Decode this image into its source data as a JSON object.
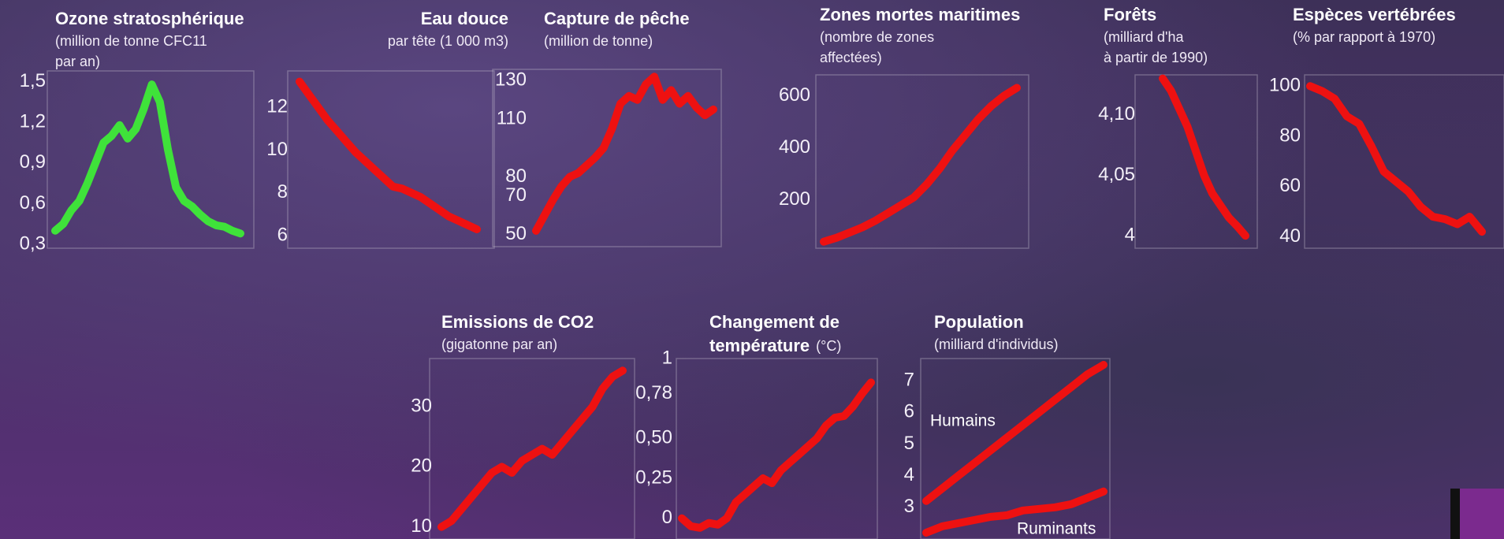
{
  "chart_data": [
    {
      "type": "line",
      "title": "Ozone stratosphérique",
      "subtitle": [
        "(million de tonne CFC11",
        "par an)"
      ],
      "ylim": [
        0.3,
        1.58
      ],
      "yticks": [
        {
          "value": 0.3,
          "label": "0,3"
        },
        {
          "value": 0.6,
          "label": "0,6"
        },
        {
          "value": 0.9,
          "label": "0,9"
        },
        {
          "value": 1.2,
          "label": "1,2"
        },
        {
          "value": 1.5,
          "label": "1,5"
        }
      ],
      "series": [
        {
          "color": "#3fe23a",
          "values": [
            0.4,
            0.45,
            0.55,
            0.62,
            0.75,
            0.9,
            1.05,
            1.1,
            1.18,
            1.08,
            1.15,
            1.3,
            1.48,
            1.35,
            1.0,
            0.72,
            0.62,
            0.58,
            0.52,
            0.47,
            0.44,
            0.43,
            0.4,
            0.38
          ]
        }
      ]
    },
    {
      "type": "line",
      "title": "Eau douce",
      "subtitle": [
        "par tête (1 000 m3)"
      ],
      "ylim": [
        5.6,
        13.7
      ],
      "yticks": [
        6,
        8,
        10,
        12
      ],
      "series": [
        {
          "color": "#ee1111",
          "values": [
            13.2,
            12.6,
            12.0,
            11.4,
            10.9,
            10.4,
            9.9,
            9.5,
            9.1,
            8.7,
            8.3,
            8.2,
            8.0,
            7.8,
            7.5,
            7.2,
            6.9,
            6.7,
            6.5,
            6.3
          ]
        }
      ]
    },
    {
      "type": "line",
      "title": "Capture de pêche",
      "subtitle": [
        "(million de tonne)"
      ],
      "ylim": [
        45,
        135
      ],
      "yticks": [
        50,
        70,
        80,
        110,
        130
      ],
      "series": [
        {
          "color": "#ee1111",
          "values": [
            52,
            60,
            68,
            75,
            80,
            82,
            86,
            90,
            95,
            105,
            118,
            122,
            120,
            128,
            132,
            120,
            125,
            118,
            122,
            116,
            112,
            115
          ]
        }
      ]
    },
    {
      "type": "line",
      "title": "Zones mortes maritimes",
      "subtitle": [
        "(nombre de zones",
        "affectées)"
      ],
      "ylim": [
        30,
        680
      ],
      "yticks": [
        200,
        400,
        600
      ],
      "series": [
        {
          "color": "#ee1111",
          "values": [
            40,
            55,
            75,
            95,
            120,
            150,
            180,
            210,
            260,
            320,
            390,
            450,
            510,
            560,
            600,
            630
          ]
        }
      ]
    },
    {
      "type": "line",
      "title": "Forêts",
      "subtitle": [
        "(milliard d'ha",
        "à partir de 1990)"
      ],
      "ylim": [
        3.993,
        4.133
      ],
      "yticks": [
        4,
        {
          "value": 4.05,
          "label": "4,05"
        },
        {
          "value": 4.1,
          "label": "4,10"
        }
      ],
      "series": [
        {
          "color": "#ee1111",
          "values": [
            4.13,
            4.12,
            4.105,
            4.09,
            4.07,
            4.05,
            4.035,
            4.025,
            4.015,
            4.008,
            4.0
          ]
        }
      ]
    },
    {
      "type": "line",
      "title": "Espèces vertébrées",
      "subtitle": [
        "(% par rapport à 1970)"
      ],
      "ylim": [
        37,
        104.5
      ],
      "yticks": [
        40,
        60,
        80,
        100
      ],
      "series": [
        {
          "color": "#ee1111",
          "values": [
            100,
            98,
            95,
            88,
            85,
            76,
            66,
            62,
            58,
            52,
            48,
            47,
            45,
            48,
            42
          ]
        }
      ]
    },
    {
      "type": "line",
      "title": "Emissions de CO2",
      "subtitle": [
        "(gigatonne par an)"
      ],
      "ylim": [
        8,
        38
      ],
      "yticks": [
        10,
        20,
        30
      ],
      "series": [
        {
          "color": "#ee1111",
          "values": [
            10,
            11,
            13,
            15,
            17,
            19,
            20,
            19,
            21,
            22,
            23,
            22,
            24,
            26,
            28,
            30,
            33,
            35,
            36
          ]
        }
      ]
    },
    {
      "type": "line",
      "title": [
        "Changement de",
        "température"
      ],
      "subtitle": [
        "(°C)"
      ],
      "ylim": [
        -0.13,
        1.0
      ],
      "yticks": [
        0,
        {
          "value": 0.25,
          "label": "0,25"
        },
        {
          "value": 0.5,
          "label": "0,50"
        },
        {
          "value": 0.78,
          "label": "0,78"
        },
        1
      ],
      "series": [
        {
          "color": "#ee1111",
          "values": [
            0.0,
            -0.05,
            -0.06,
            -0.03,
            -0.04,
            0.0,
            0.1,
            0.15,
            0.2,
            0.25,
            0.22,
            0.3,
            0.35,
            0.4,
            0.45,
            0.5,
            0.58,
            0.63,
            0.64,
            0.7,
            0.78,
            0.85
          ]
        }
      ]
    },
    {
      "type": "line",
      "title": "Population",
      "subtitle": [
        "(milliard d'individus)"
      ],
      "ylim": [
        2.0,
        7.7
      ],
      "yticks": [
        3,
        4,
        5,
        6,
        7
      ],
      "series": [
        {
          "name": "Humains",
          "color": "#ee1111",
          "values": [
            3.2,
            3.6,
            4.0,
            4.4,
            4.8,
            5.2,
            5.6,
            6.0,
            6.4,
            6.8,
            7.2,
            7.5
          ]
        },
        {
          "name": "Ruminants",
          "color": "#ee1111",
          "values": [
            2.2,
            2.4,
            2.5,
            2.6,
            2.7,
            2.75,
            2.9,
            2.95,
            3.0,
            3.1,
            3.3,
            3.5
          ]
        }
      ]
    }
  ]
}
